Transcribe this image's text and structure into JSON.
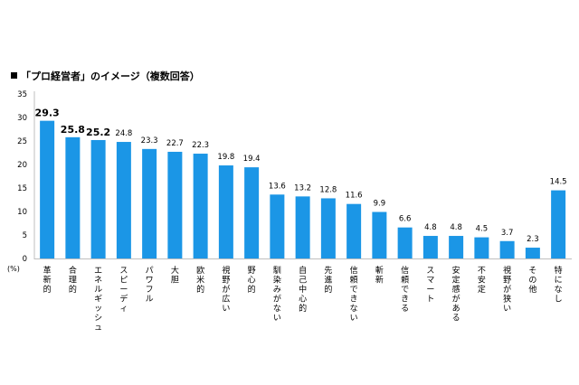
{
  "chart_data": {
    "type": "bar",
    "title": "「プロ経営者」のイメージ（複数回答）",
    "unit_label": "(%)",
    "ylim": [
      0,
      35
    ],
    "yticks": [
      0,
      5,
      10,
      15,
      20,
      25,
      30,
      35
    ],
    "grid": false,
    "bar_color": "#1b96e6",
    "categories": [
      "革新的",
      "合理的",
      "エネルギッシュ",
      "スピーディ",
      "パワフル",
      "大胆",
      "欧米的",
      "視野が広い",
      "野心的",
      "馴染みがない",
      "自己中心的",
      "先進的",
      "信頼できない",
      "斬新",
      "信頼できる",
      "スマート",
      "安定感がある",
      "不安定",
      "視野が狭い",
      "その他",
      "特になし"
    ],
    "values": [
      29.3,
      25.8,
      25.2,
      24.8,
      23.3,
      22.7,
      22.3,
      19.8,
      19.4,
      13.6,
      13.2,
      12.8,
      11.6,
      9.9,
      6.6,
      4.8,
      4.8,
      4.5,
      3.7,
      2.3,
      14.5
    ],
    "value_labels": [
      "29.3",
      "25.8",
      "25.2",
      "24.8",
      "23.3",
      "22.7",
      "22.3",
      "19.8",
      "19.4",
      "13.6",
      "13.2",
      "12.8",
      "11.6",
      "9.9",
      "6.6",
      "4.8",
      "4.8",
      "4.5",
      "3.7",
      "2.3",
      "14.5"
    ]
  }
}
